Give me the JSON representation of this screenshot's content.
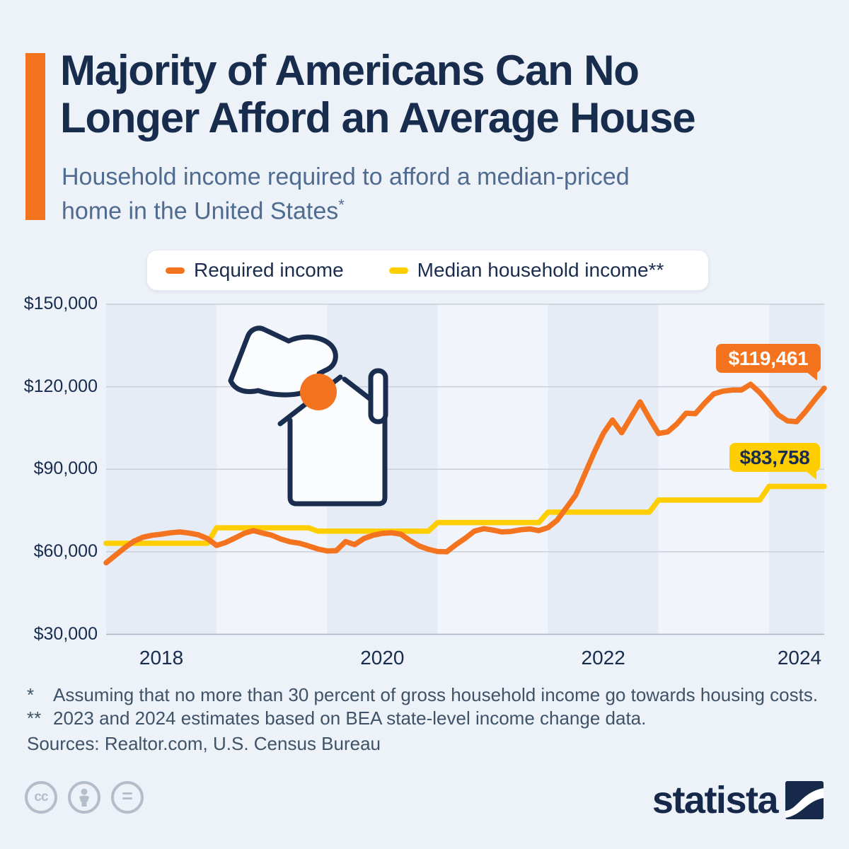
{
  "header": {
    "title_line1": "Majority of Americans Can No",
    "title_line2": "Longer Afford an Average House",
    "subtitle_line1": "Household income required to afford a median-priced",
    "subtitle_line2": "home in the United States",
    "subtitle_footnote_mark": "*"
  },
  "legend": {
    "items": [
      {
        "label": "Required income",
        "color": "#F4731E"
      },
      {
        "label": "Median household income**",
        "color": "#FFCE00"
      }
    ]
  },
  "chart_data": {
    "type": "line",
    "title": "Household income required to afford a median-priced home in the United States",
    "x_interval": "monthly",
    "x_start": "2017-07",
    "x_end": "2024-01",
    "x_tick_labels": [
      "2018",
      "2020",
      "2022",
      "2024"
    ],
    "y_ticks": [
      30000,
      60000,
      90000,
      120000,
      150000
    ],
    "y_tick_labels": [
      "$30,000",
      "$60,000",
      "$90,000",
      "$120,000",
      "$150,000"
    ],
    "ylim": [
      30000,
      150000
    ],
    "grid": "horizontal",
    "legend_position": "top",
    "plot_bands": "alternating vertical year bands starting each July",
    "series": [
      {
        "name": "Required income",
        "color": "#F4731E",
        "end_label": "$119,461",
        "end_value": 119461,
        "values": [
          56000,
          58700,
          61400,
          63800,
          65300,
          66000,
          66400,
          66900,
          67200,
          66800,
          66200,
          64800,
          62300,
          63400,
          65000,
          66700,
          67700,
          66800,
          66000,
          64600,
          63600,
          63100,
          62100,
          61000,
          60300,
          60400,
          63700,
          62600,
          64800,
          66000,
          66700,
          66900,
          66400,
          64100,
          62100,
          60900,
          60100,
          60000,
          62600,
          64900,
          67500,
          68400,
          67900,
          67200,
          67400,
          68000,
          68300,
          67700,
          68800,
          71500,
          76000,
          80600,
          88300,
          96000,
          103000,
          107900,
          103300,
          108900,
          114500,
          108500,
          103000,
          103600,
          106500,
          110400,
          110200,
          114000,
          117400,
          118400,
          118800,
          118800,
          120900,
          117900,
          114000,
          109800,
          107600,
          107300,
          111100,
          115400,
          119461
        ]
      },
      {
        "name": "Median household income**",
        "color": "#FFCE00",
        "end_label": "$83,758",
        "end_value": 83758,
        "values": [
          63100,
          63100,
          63100,
          63100,
          63100,
          63100,
          63100,
          63100,
          63100,
          63100,
          63100,
          63100,
          68700,
          68700,
          68700,
          68700,
          68700,
          68700,
          68700,
          68700,
          68700,
          68700,
          68700,
          67500,
          67500,
          67500,
          67500,
          67500,
          67500,
          67500,
          67500,
          67500,
          67500,
          67500,
          67500,
          67500,
          70600,
          70600,
          70600,
          70600,
          70600,
          70600,
          70600,
          70600,
          70600,
          70600,
          70600,
          70600,
          74400,
          74400,
          74400,
          74400,
          74400,
          74400,
          74400,
          74400,
          74400,
          74400,
          74400,
          74400,
          78800,
          78800,
          78800,
          78800,
          78800,
          78800,
          78800,
          78800,
          78800,
          78800,
          78800,
          78800,
          83758,
          83758,
          83758,
          83758,
          83758,
          83758,
          83758
        ]
      }
    ]
  },
  "callouts": {
    "required_income": "$119,461",
    "median_income": "$83,758"
  },
  "footnotes": {
    "line1_mark": "*",
    "line1_text": "Assuming that no more than 30 percent of gross household income go towards housing costs.",
    "line2_mark": "**",
    "line2_text": "2023 and 2024 estimates based on BEA state-level income change data.",
    "sources": "Sources: Realtor.com, U.S. Census Bureau"
  },
  "footer": {
    "license_cc": "cc",
    "license_nd": "=",
    "brand": "statista"
  },
  "colors": {
    "background": "#edf1f8",
    "band_dark": "#e6ecf5",
    "band_light": "#f1f4fa",
    "accent_orange": "#F4731E",
    "accent_yellow": "#FFCE00",
    "navy": "#1b2d4e",
    "gridline": "#c9cfd9",
    "baseline": "#a9b3c1"
  }
}
